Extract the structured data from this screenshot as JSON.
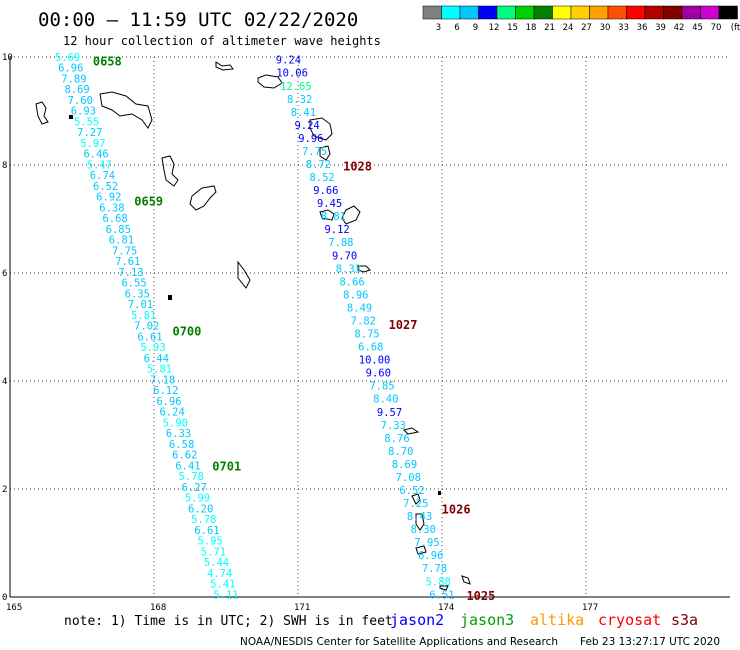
{
  "header": {
    "title": "00:00 – 11:59 UTC 02/22/2020",
    "subtitle": "12 hour collection of altimeter wave heights"
  },
  "color_legend": {
    "labels": [
      "3",
      "6",
      "9",
      "12",
      "15",
      "18",
      "21",
      "24",
      "27",
      "30",
      "33",
      "36",
      "39",
      "42",
      "45",
      "70"
    ],
    "unit": "(ft)",
    "colors": [
      "#808080",
      "#00ffff",
      "#00c8ff",
      "#0000ff",
      "#00ff80",
      "#00d000",
      "#008000",
      "#ffff00",
      "#ffd000",
      "#ffa000",
      "#ff5000",
      "#ff0000",
      "#b00000",
      "#800000",
      "#a000a0",
      "#d000d0",
      "#000000"
    ]
  },
  "map": {
    "x_axis": {
      "min": 165,
      "max": 180,
      "ticks": [
        {
          "value": 165,
          "label": "165"
        },
        {
          "value": 168,
          "label": "168"
        },
        {
          "value": 171,
          "label": "171"
        },
        {
          "value": 174,
          "label": "174"
        },
        {
          "value": 177,
          "label": "177"
        }
      ]
    },
    "y_axis": {
      "min": 0,
      "max": 10,
      "ticks": [
        {
          "value": 0,
          "label": "0"
        },
        {
          "value": 2,
          "label": "2"
        },
        {
          "value": 4,
          "label": "4"
        },
        {
          "value": 6,
          "label": "6"
        },
        {
          "value": 8,
          "label": "8"
        },
        {
          "value": 10,
          "label": "10"
        }
      ]
    },
    "grid": "dotted",
    "left_track": {
      "start": {
        "lon": 166.2,
        "lat": 10.0
      },
      "end": {
        "lon": 169.5,
        "lat": 0.05
      },
      "values": [
        "5.69",
        "6.96",
        "7.89",
        "8.69",
        "7.60",
        "6.93",
        "5.55",
        "7.27",
        "5.97",
        "6.46",
        "5.47",
        "6.74",
        "6.52",
        "6.92",
        "6.38",
        "6.68",
        "6.85",
        "6.81",
        "7.75",
        "7.61",
        "7.13",
        "6.55",
        "6.35",
        "7.01",
        "5.81",
        "7.02",
        "6.61",
        "5.93",
        "6.44",
        "5.81",
        "7.18",
        "6.12",
        "6.96",
        "6.24",
        "5.90",
        "6.33",
        "6.58",
        "6.62",
        "6.41",
        "5.78",
        "6.27",
        "5.99",
        "6.20",
        "5.78",
        "6.61",
        "5.95",
        "5.71",
        "5.44",
        "4.74",
        "5.41",
        "5.11"
      ]
    },
    "right_track": {
      "start": {
        "lon": 170.8,
        "lat": 9.95
      },
      "end": {
        "lon": 174.0,
        "lat": 0.05
      },
      "values": [
        "9.24",
        "10.06",
        "12.65",
        "8.32",
        "8.41",
        "9.24",
        "9.96",
        "7.75",
        "8.72",
        "8.52",
        "9.66",
        "9.45",
        "8.81",
        "9.12",
        "7.88",
        "9.70",
        "8.33",
        "8.66",
        "8.96",
        "8.49",
        "7.82",
        "8.75",
        "6.68",
        "10.00",
        "9.60",
        "7.85",
        "8.40",
        "9.57",
        "7.33",
        "8.76",
        "8.70",
        "8.69",
        "7.08",
        "6.52",
        "7.25",
        "8.43",
        "8.30",
        "7.95",
        "6.96",
        "7.78",
        "5.88",
        "6.51"
      ]
    },
    "time_labels": [
      {
        "text": "0658",
        "lon": 166.5,
        "lat": 9.92,
        "color": "#008000"
      },
      {
        "text": "0659",
        "lon": 166.5,
        "lat": 7.32,
        "color": "#008000"
      },
      {
        "text": "0700",
        "lon": 166.5,
        "lat": 4.92,
        "color": "#008000"
      },
      {
        "text": "0701",
        "lon": 166.5,
        "lat": 2.42,
        "color": "#008000"
      },
      {
        "text": "1028",
        "lon": 166.5,
        "lat": 7.97,
        "color": "#800000"
      },
      {
        "text": "1027",
        "lon": 166.5,
        "lat": 5.04,
        "color": "#800000"
      },
      {
        "text": "1026",
        "lon": 166.5,
        "lat": 1.62,
        "color": "#800000"
      },
      {
        "text": "1025",
        "lon": 166.5,
        "lat": 0.02,
        "color": "#800000"
      }
    ]
  },
  "footer": {
    "note": "note: 1) Time is in UTC; 2) SWH is in feet",
    "satellites": [
      {
        "name": "jason2",
        "color": "#0000ff"
      },
      {
        "name": "jason3",
        "color": "#00a000"
      },
      {
        "name": "altika",
        "color": "#ff9900"
      },
      {
        "name": "cryosat",
        "color": "#ff0000"
      },
      {
        "name": "s3a",
        "color": "#800000"
      }
    ],
    "credit": "NOAA/NESDIS Center for Satellite Applications and Research",
    "timestamp": "Feb 23 13:27:17 UTC 2020"
  }
}
